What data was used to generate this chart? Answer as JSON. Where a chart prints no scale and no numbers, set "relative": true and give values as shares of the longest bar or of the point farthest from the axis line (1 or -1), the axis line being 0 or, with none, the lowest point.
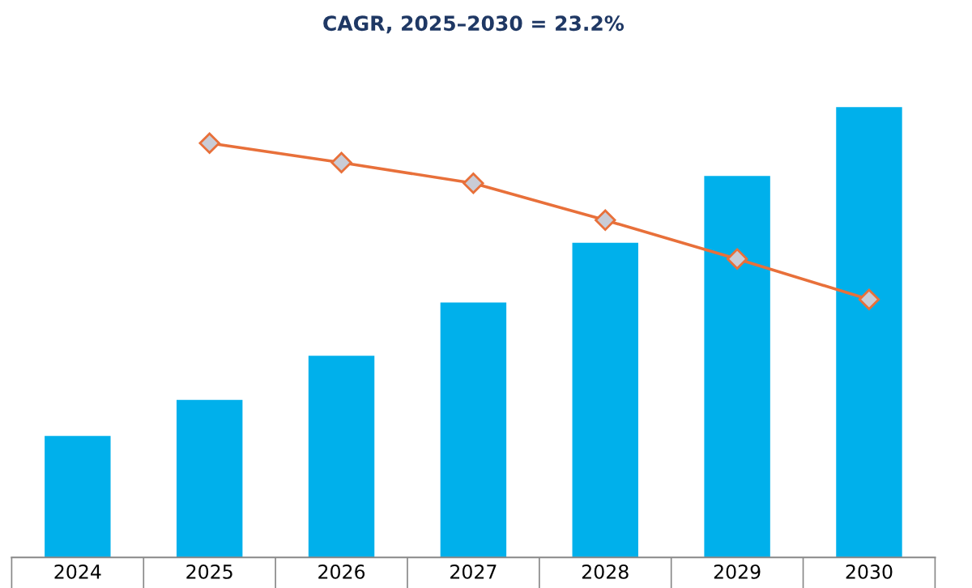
{
  "chart_data": {
    "type": "bar",
    "title": "CAGR, 2025–2030 = 23.2%",
    "categories": [
      "2024",
      "2025",
      "2026",
      "2027",
      "2028",
      "2029",
      "2030"
    ],
    "relative": true,
    "grid": false,
    "legend": false,
    "series": [
      {
        "color": "#00b0eb",
        "values": [
          0.27,
          0.35,
          0.448,
          0.566,
          0.699,
          0.847,
          1
        ]
      },
      {
        "type": "line",
        "color": "#e8703a",
        "marker": "diamond",
        "line_style": "solid",
        "values": [
          null,
          0.92,
          0.877,
          0.831,
          0.749,
          0.663,
          0.573
        ]
      }
    ]
  }
}
